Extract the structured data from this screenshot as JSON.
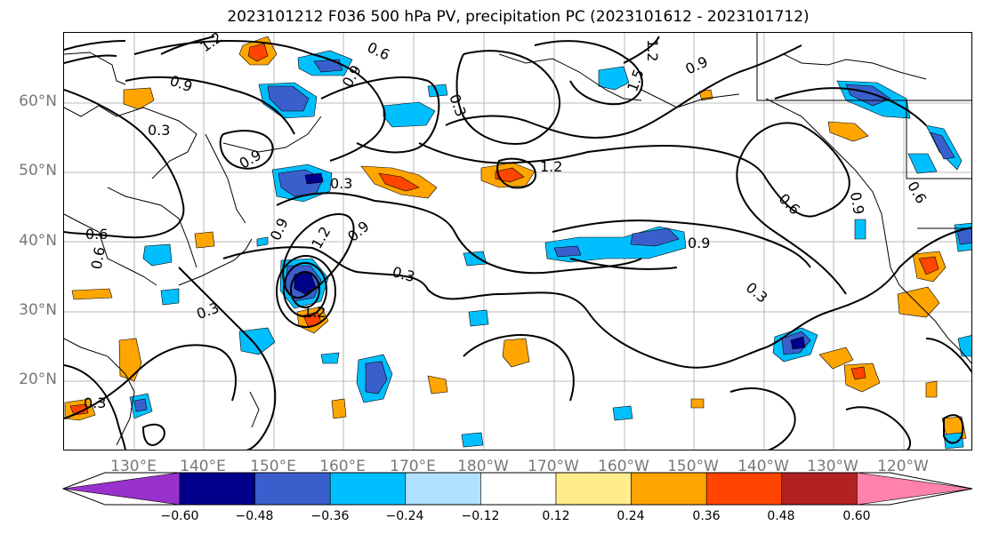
{
  "title": "2023101212 F036 500 hPa PV, precipitation PC (2023101612 - 2023101712)",
  "map": {
    "lat_labels": [
      "60°N",
      "50°N",
      "40°N",
      "30°N",
      "20°N"
    ],
    "lon_labels": [
      "130°E",
      "140°E",
      "150°E",
      "160°E",
      "170°E",
      "180°W",
      "170°W",
      "160°W",
      "150°W",
      "140°W",
      "130°W",
      "120°W"
    ],
    "contour_labels": [
      "1.2",
      "0.6",
      "0.9",
      "0.3",
      "0.3",
      "0.9",
      "0.6",
      "0.9",
      "0.3",
      "1.2",
      "0.9",
      "1.2",
      "0.9",
      "0.6",
      "0.6",
      "0.9",
      "0.3",
      "0.9",
      "0.3",
      "1.2",
      "0.6",
      "0.3",
      "0.3",
      "1.2",
      "0.9",
      "1.5"
    ]
  },
  "colorbar": {
    "ticks": [
      "−0.60",
      "−0.48",
      "−0.36",
      "−0.24",
      "−0.12",
      "0.12",
      "0.24",
      "0.36",
      "0.48",
      "0.60"
    ],
    "colors": [
      "#9932cc",
      "#00008b",
      "#3a5fcd",
      "#00bfff",
      "#b0e2ff",
      "#ffffff",
      "#ffec8b",
      "#ffa500",
      "#ff4500",
      "#b22222",
      "#ff82ab"
    ]
  }
}
